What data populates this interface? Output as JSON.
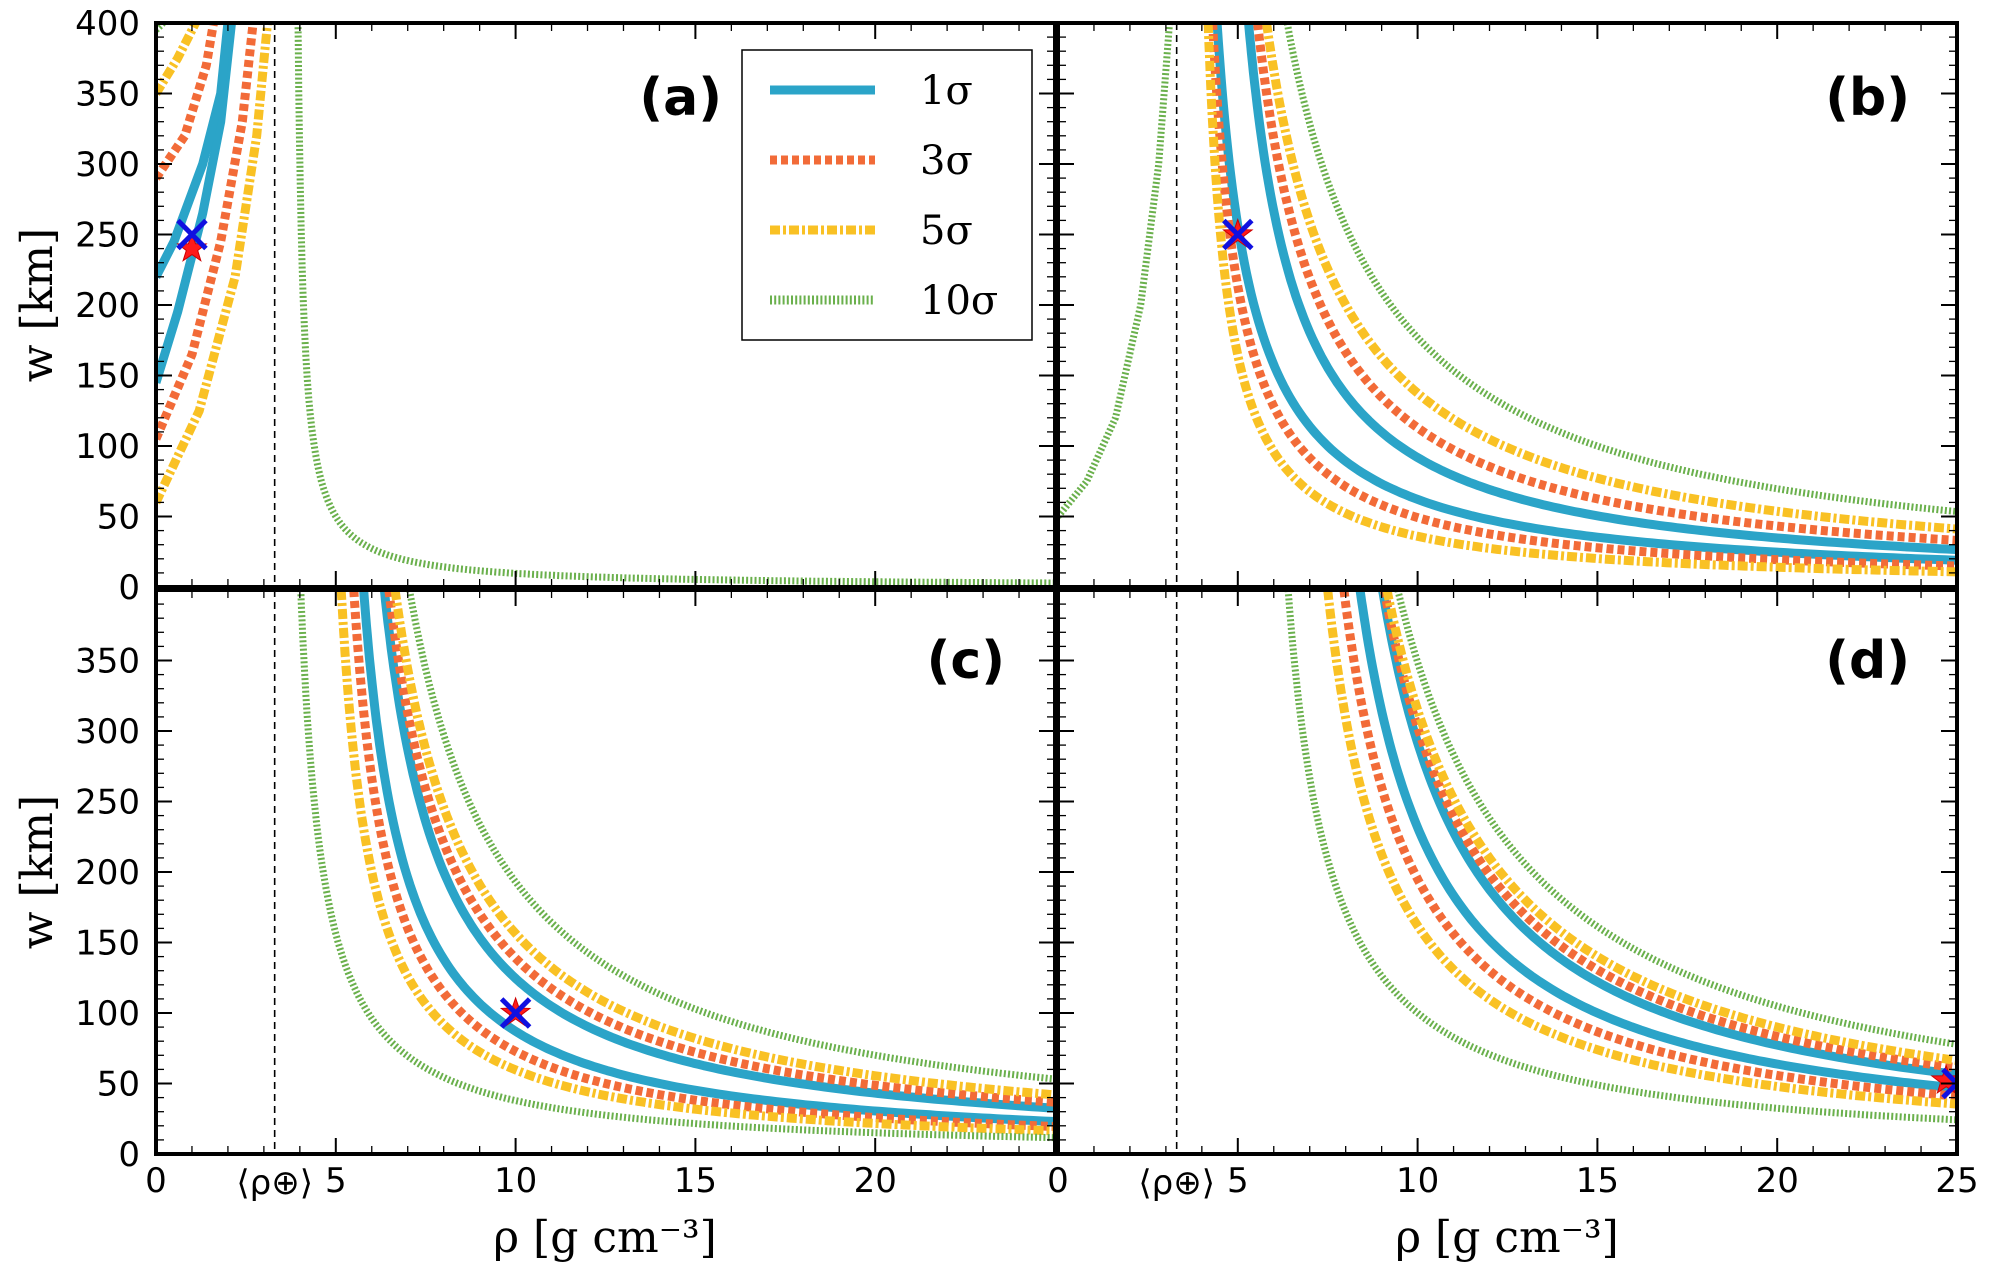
{
  "chart_data": {
    "type": "line",
    "shared": {
      "xlabel": "ρ [g cm⁻³]",
      "ylabel": "w [km]",
      "xlim": [
        0,
        25
      ],
      "ylim": [
        0,
        400
      ],
      "xticks": [
        "0",
        "5",
        "10",
        "15",
        "20",
        "25"
      ],
      "yticks": [
        "0",
        "50",
        "100",
        "150",
        "200",
        "250",
        "300",
        "350",
        "400"
      ],
      "mean_density_label": "⟨ρ⊕⟩",
      "mean_density_x": 3.3
    },
    "legend": {
      "position": "top-center",
      "entries": [
        {
          "label": "1σ",
          "color": "#2ba4c8",
          "style": "solid"
        },
        {
          "label": "3σ",
          "color": "#f26b38",
          "style": "dotted"
        },
        {
          "label": "5σ",
          "color": "#f9c124",
          "style": "dashdot"
        },
        {
          "label": "10σ",
          "color": "#6ab04c",
          "style": "fine-dotted"
        }
      ]
    },
    "panels": [
      {
        "label": "(a)",
        "true_point": {
          "x": 1.0,
          "y": 250
        },
        "best_fit": {
          "x": 1.0,
          "y": 240
        },
        "contours": [
          {
            "sigma": "1σ",
            "kind": "steep",
            "inner": [
              [
                0,
                145
              ],
              [
                0.6,
                195
              ],
              [
                1.3,
                265
              ],
              [
                1.8,
                330
              ],
              [
                2.1,
                400
              ]
            ],
            "outer": [
              [
                0,
                220
              ],
              [
                0.5,
                245
              ],
              [
                1.3,
                300
              ],
              [
                1.8,
                350
              ],
              [
                2.0,
                400
              ]
            ]
          },
          {
            "sigma": "3σ",
            "kind": "steep",
            "inner": [
              [
                0,
                105
              ],
              [
                1.0,
                165
              ],
              [
                1.8,
                245
              ],
              [
                2.4,
                330
              ],
              [
                2.7,
                400
              ]
            ],
            "outer": [
              [
                0,
                290
              ],
              [
                0.8,
                320
              ],
              [
                1.4,
                370
              ],
              [
                1.6,
                400
              ]
            ]
          },
          {
            "sigma": "5σ",
            "kind": "steep",
            "inner": [
              [
                0,
                60
              ],
              [
                1.2,
                125
              ],
              [
                2.2,
                220
              ],
              [
                2.8,
                320
              ],
              [
                3.1,
                400
              ]
            ],
            "outer": [
              [
                0,
                350
              ],
              [
                0.6,
                375
              ],
              [
                1.1,
                400
              ]
            ]
          },
          {
            "sigma": "10σ",
            "kind": "hyperbola",
            "c": 60,
            "x0": 3.8
          },
          {
            "sigma": "10σ",
            "kind": "steep",
            "outer": [
              [
                0,
                395
              ],
              [
                0.2,
                400
              ]
            ]
          }
        ]
      },
      {
        "label": "(b)",
        "true_point": {
          "x": 5.0,
          "y": 250
        },
        "best_fit": {
          "x": 5.0,
          "y": 250
        },
        "contours": [
          {
            "sigma": "1σ",
            "kind": "hyperbola",
            "c": 410,
            "x0": 3.4
          },
          {
            "sigma": "1σ",
            "kind": "hyperbola",
            "c": 560,
            "x0": 3.9
          },
          {
            "sigma": "3σ",
            "kind": "hyperbola",
            "c": 320,
            "x0": 3.5
          },
          {
            "sigma": "3σ",
            "kind": "hyperbola",
            "c": 700,
            "x0": 3.8
          },
          {
            "sigma": "5σ",
            "kind": "hyperbola",
            "c": 230,
            "x0": 3.6
          },
          {
            "sigma": "5σ",
            "kind": "hyperbola",
            "c": 880,
            "x0": 3.6
          },
          {
            "sigma": "10σ",
            "kind": "hyperbola",
            "c": 1150,
            "x0": 3.5
          },
          {
            "sigma": "10σ",
            "kind": "left-branch",
            "points": [
              [
                0,
                50
              ],
              [
                0.8,
                75
              ],
              [
                1.6,
                120
              ],
              [
                2.3,
                200
              ],
              [
                2.8,
                300
              ],
              [
                3.1,
                400
              ]
            ]
          }
        ]
      },
      {
        "label": "(c)",
        "true_point": {
          "x": 10.0,
          "y": 100
        },
        "best_fit": {
          "x": 10.0,
          "y": 100
        },
        "contours": [
          {
            "sigma": "1σ",
            "kind": "hyperbola",
            "c": 470,
            "x0": 4.6
          },
          {
            "sigma": "1σ",
            "kind": "hyperbola",
            "c": 660,
            "x0": 4.7
          },
          {
            "sigma": "3σ",
            "kind": "hyperbola",
            "c": 400,
            "x0": 4.5
          },
          {
            "sigma": "3σ",
            "kind": "hyperbola",
            "c": 750,
            "x0": 4.6
          },
          {
            "sigma": "5σ",
            "kind": "hyperbola",
            "c": 340,
            "x0": 4.3
          },
          {
            "sigma": "5σ",
            "kind": "hyperbola",
            "c": 860,
            "x0": 4.5
          },
          {
            "sigma": "10σ",
            "kind": "hyperbola",
            "c": 250,
            "x0": 3.4
          },
          {
            "sigma": "10σ",
            "kind": "hyperbola",
            "c": 1100,
            "x0": 4.3
          }
        ]
      },
      {
        "label": "(d)",
        "true_point": {
          "x": 25.0,
          "y": 50
        },
        "best_fit": {
          "x": 24.7,
          "y": 52
        },
        "contours": [
          {
            "sigma": "1σ",
            "kind": "hyperbola",
            "c": 880,
            "x0": 6.2
          },
          {
            "sigma": "1σ",
            "kind": "hyperbola",
            "c": 1050,
            "x0": 6.4
          },
          {
            "sigma": "3σ",
            "kind": "hyperbola",
            "c": 780,
            "x0": 6.0
          },
          {
            "sigma": "3σ",
            "kind": "hyperbola",
            "c": 1150,
            "x0": 6.2
          },
          {
            "sigma": "5σ",
            "kind": "hyperbola",
            "c": 680,
            "x0": 5.8
          },
          {
            "sigma": "5σ",
            "kind": "hyperbola",
            "c": 1260,
            "x0": 6.0
          },
          {
            "sigma": "10σ",
            "kind": "hyperbola",
            "c": 480,
            "x0": 5.2
          },
          {
            "sigma": "10σ",
            "kind": "hyperbola",
            "c": 1500,
            "x0": 5.7
          }
        ]
      }
    ]
  }
}
